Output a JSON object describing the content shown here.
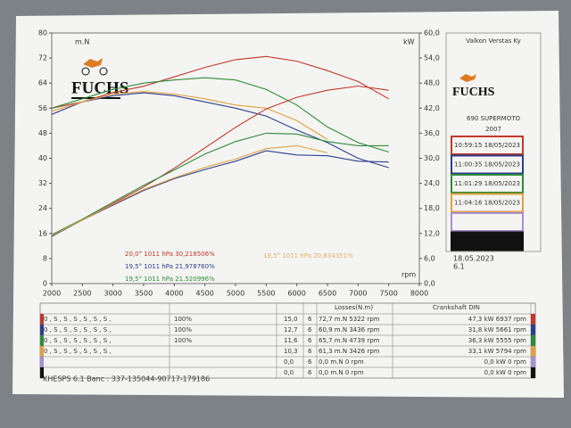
{
  "chart_data": {
    "type": "line",
    "x_label": "rpm",
    "y_label": "m.N",
    "y2_label": "kW",
    "x": [
      2000,
      2500,
      3000,
      3500,
      4000,
      4500,
      5000,
      5500,
      6000,
      6500,
      7000,
      7500
    ],
    "xlim": [
      2000,
      8000
    ],
    "xticks": [
      2000,
      2500,
      3000,
      3500,
      4000,
      4500,
      5000,
      5500,
      6000,
      6500,
      7000,
      7500,
      8000
    ],
    "ylim": [
      0,
      80
    ],
    "yticks": [
      0,
      8,
      16,
      24,
      32,
      40,
      48,
      56,
      64,
      72,
      80
    ],
    "y2lim": [
      0,
      60
    ],
    "y2ticks": [
      {
        "value": 0,
        "label": "0,0"
      },
      {
        "value": 6,
        "label": "6,0"
      },
      {
        "value": 12,
        "label": "12,0"
      },
      {
        "value": 18,
        "label": "18,0"
      },
      {
        "value": 24,
        "label": "24,0"
      },
      {
        "value": 30,
        "label": "30,0"
      },
      {
        "value": 36,
        "label": "36,0"
      },
      {
        "value": 42,
        "label": "42,0"
      },
      {
        "value": 48,
        "label": "48,0"
      },
      {
        "value": 54,
        "label": "54,0"
      },
      {
        "value": 60,
        "label": "60,0"
      }
    ],
    "grid": false,
    "series": [
      {
        "color": "#c0392b",
        "values": [
          56,
          58,
          61,
          63,
          66,
          69,
          71.5,
          72.5,
          71,
          68,
          64.5,
          59
        ]
      },
      {
        "color": "#2c3e8f",
        "values": [
          54,
          58,
          60,
          60.9,
          60,
          58,
          56,
          53.5,
          49,
          45,
          40,
          37
        ]
      },
      {
        "color": "#2e8b3a",
        "values": [
          56,
          59,
          62,
          64,
          65,
          65.7,
          65,
          62,
          57,
          50,
          45,
          42
        ]
      },
      {
        "color": "#e0a040",
        "values": [
          55,
          58,
          60.5,
          61.3,
          60.5,
          59,
          57,
          56,
          52,
          46,
          null,
          null
        ]
      },
      {
        "color": "#c0392b",
        "axis": "y2",
        "values": [
          11.7,
          15.2,
          19.2,
          23.1,
          27.6,
          32.5,
          37.4,
          41.8,
          44.6,
          46.3,
          47.3,
          46.3
        ]
      },
      {
        "color": "#2c3e8f",
        "axis": "y2",
        "values": [
          11.3,
          15.2,
          18.8,
          22.3,
          25.1,
          27.3,
          29.3,
          31.8,
          30.8,
          30.6,
          29.3,
          29.1
        ]
      },
      {
        "color": "#2e8b3a",
        "axis": "y2",
        "values": [
          11.7,
          15.4,
          19.5,
          23.5,
          27.2,
          31,
          34,
          36,
          35.8,
          34,
          33,
          33
        ]
      },
      {
        "color": "#e0a040",
        "axis": "y2",
        "values": [
          11.5,
          15.2,
          19,
          22.5,
          25.3,
          27.8,
          29.8,
          32.3,
          33,
          31.3,
          null,
          null
        ]
      }
    ],
    "annotations": [
      {
        "text": "20,0°  1011 hPa  30,218506%",
        "color": "#c0392b"
      },
      {
        "text": "19,5°  1011 hPa  21,978760%",
        "color": "#2c3e8f"
      },
      {
        "text": "19,5°  1011 hPa  21,520996%",
        "color": "#2e8b3a"
      },
      {
        "text": "19,5°  1011 hPa  20,834351%",
        "color": "#e0b060"
      }
    ]
  },
  "logo": "FUCHS",
  "side_panel": {
    "company": "Valkon Verstas Ky",
    "logo": "FUCHS",
    "model": "690 SUPERMOTO",
    "year": "2007",
    "runs": [
      {
        "label": "10:59:15  18/05/2023",
        "color": "#c0392b"
      },
      {
        "label": "11:00:35  18/05/2023",
        "color": "#2c3e8f"
      },
      {
        "label": "11:01:29  18/05/2023",
        "color": "#2e8b3a"
      },
      {
        "label": "11:04:16  18/05/2023",
        "color": "#e0a040"
      },
      {
        "color": "#a98fd0"
      },
      {
        "color": "#111111"
      }
    ],
    "date": "18.05.2023",
    "version": "6.1"
  },
  "table": {
    "losses_header": "Losses(N.m)",
    "din_header": "Crankshaft DIN",
    "rows": [
      {
        "color": "#c0392b",
        "settings": "0 , S , S , S , S , S , S ,",
        "percent": "100%",
        "loss": "15,0",
        "gear": "6",
        "torque": "72,7 m.N 5322 rpm",
        "power": "47,3 kW 6937 rpm"
      },
      {
        "color": "#2c3e8f",
        "settings": "0 , S , S , S , S , S , S ,",
        "percent": "100%",
        "loss": "12,7",
        "gear": "6",
        "torque": "60,9 m.N 3436 rpm",
        "power": "31,8 kW 5661 rpm"
      },
      {
        "color": "#2e8b3a",
        "settings": "0 , S , S , S , S , S , S ,",
        "percent": "100%",
        "loss": "11,6",
        "gear": "6",
        "torque": "65,7 m.N 4739 rpm",
        "power": "36,3 kW 5555 rpm"
      },
      {
        "color": "#e0a040",
        "settings": "0 , S , S , S , S , S , S ,",
        "loss": "10,3",
        "gear": "6",
        "torque": "61,3 m.N 3426 rpm",
        "power": "33,1 kW 5794 rpm"
      },
      {
        "color": "#a98fd0",
        "loss": "0,0",
        "gear": "6",
        "torque": "0,0 m.N 0 rpm",
        "power": "0,0 kW 0 rpm"
      },
      {
        "color": "#111111",
        "loss": "0,0",
        "gear": "6",
        "torque": "0,0 m.N 0 rpm",
        "power": "0,0 kW 0 rpm"
      }
    ]
  },
  "footer": "KHESPS 6.1  Banc : 337-135044-90717-179186"
}
